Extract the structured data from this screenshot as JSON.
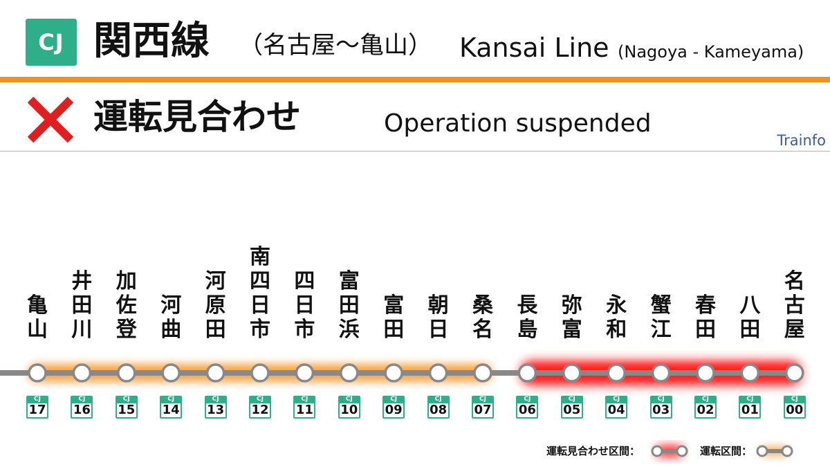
{
  "header": {
    "badge": "CJ",
    "line_name_ja": "関西線",
    "section_ja": "（名古屋〜亀山）",
    "line_name_en": "Kansai Line",
    "section_en": "(Nagoya - Kameyama)"
  },
  "status": {
    "icon": "x-icon",
    "text_ja": "運転見合わせ",
    "text_en": "Operation suspended",
    "color": "#e02020"
  },
  "brand": "Trainfo",
  "colors": {
    "line_badge": "#2fae8a",
    "header_rule": "#f4901e",
    "suspended_glow": "#ff1a1a",
    "running_glow": "#f7a54a",
    "track": "#888888"
  },
  "code_prefix": "CJ",
  "stations": [
    {
      "name": [
        "亀",
        "山"
      ],
      "code": "17",
      "section": "running"
    },
    {
      "name": [
        "井",
        "田",
        "川"
      ],
      "code": "16",
      "section": "running"
    },
    {
      "name": [
        "加",
        "佐",
        "登"
      ],
      "code": "15",
      "section": "running"
    },
    {
      "name": [
        "河",
        "曲"
      ],
      "code": "14",
      "section": "running"
    },
    {
      "name": [
        "河",
        "原",
        "田"
      ],
      "code": "13",
      "section": "running"
    },
    {
      "name": [
        "南",
        "四",
        "日",
        "市"
      ],
      "code": "12",
      "section": "running"
    },
    {
      "name": [
        "四",
        "日",
        "市"
      ],
      "code": "11",
      "section": "running"
    },
    {
      "name": [
        "富",
        "田",
        "浜"
      ],
      "code": "10",
      "section": "running"
    },
    {
      "name": [
        "富",
        "田"
      ],
      "code": "09",
      "section": "running"
    },
    {
      "name": [
        "朝",
        "日"
      ],
      "code": "08",
      "section": "running"
    },
    {
      "name": [
        "桑",
        "名"
      ],
      "code": "07",
      "section": "running"
    },
    {
      "name": [
        "長",
        "島"
      ],
      "code": "06",
      "section": "suspended"
    },
    {
      "name": [
        "弥",
        "富"
      ],
      "code": "05",
      "section": "suspended"
    },
    {
      "name": [
        "永",
        "和"
      ],
      "code": "04",
      "section": "suspended"
    },
    {
      "name": [
        "蟹",
        "江"
      ],
      "code": "03",
      "section": "suspended"
    },
    {
      "name": [
        "春",
        "田"
      ],
      "code": "02",
      "section": "suspended"
    },
    {
      "name": [
        "八",
        "田"
      ],
      "code": "01",
      "section": "suspended"
    },
    {
      "name": [
        "名",
        "古",
        "屋"
      ],
      "code": "00",
      "section": "suspended"
    }
  ],
  "legend": {
    "suspended_label": "運転見合わせ区間：",
    "running_label": "運転区間："
  }
}
